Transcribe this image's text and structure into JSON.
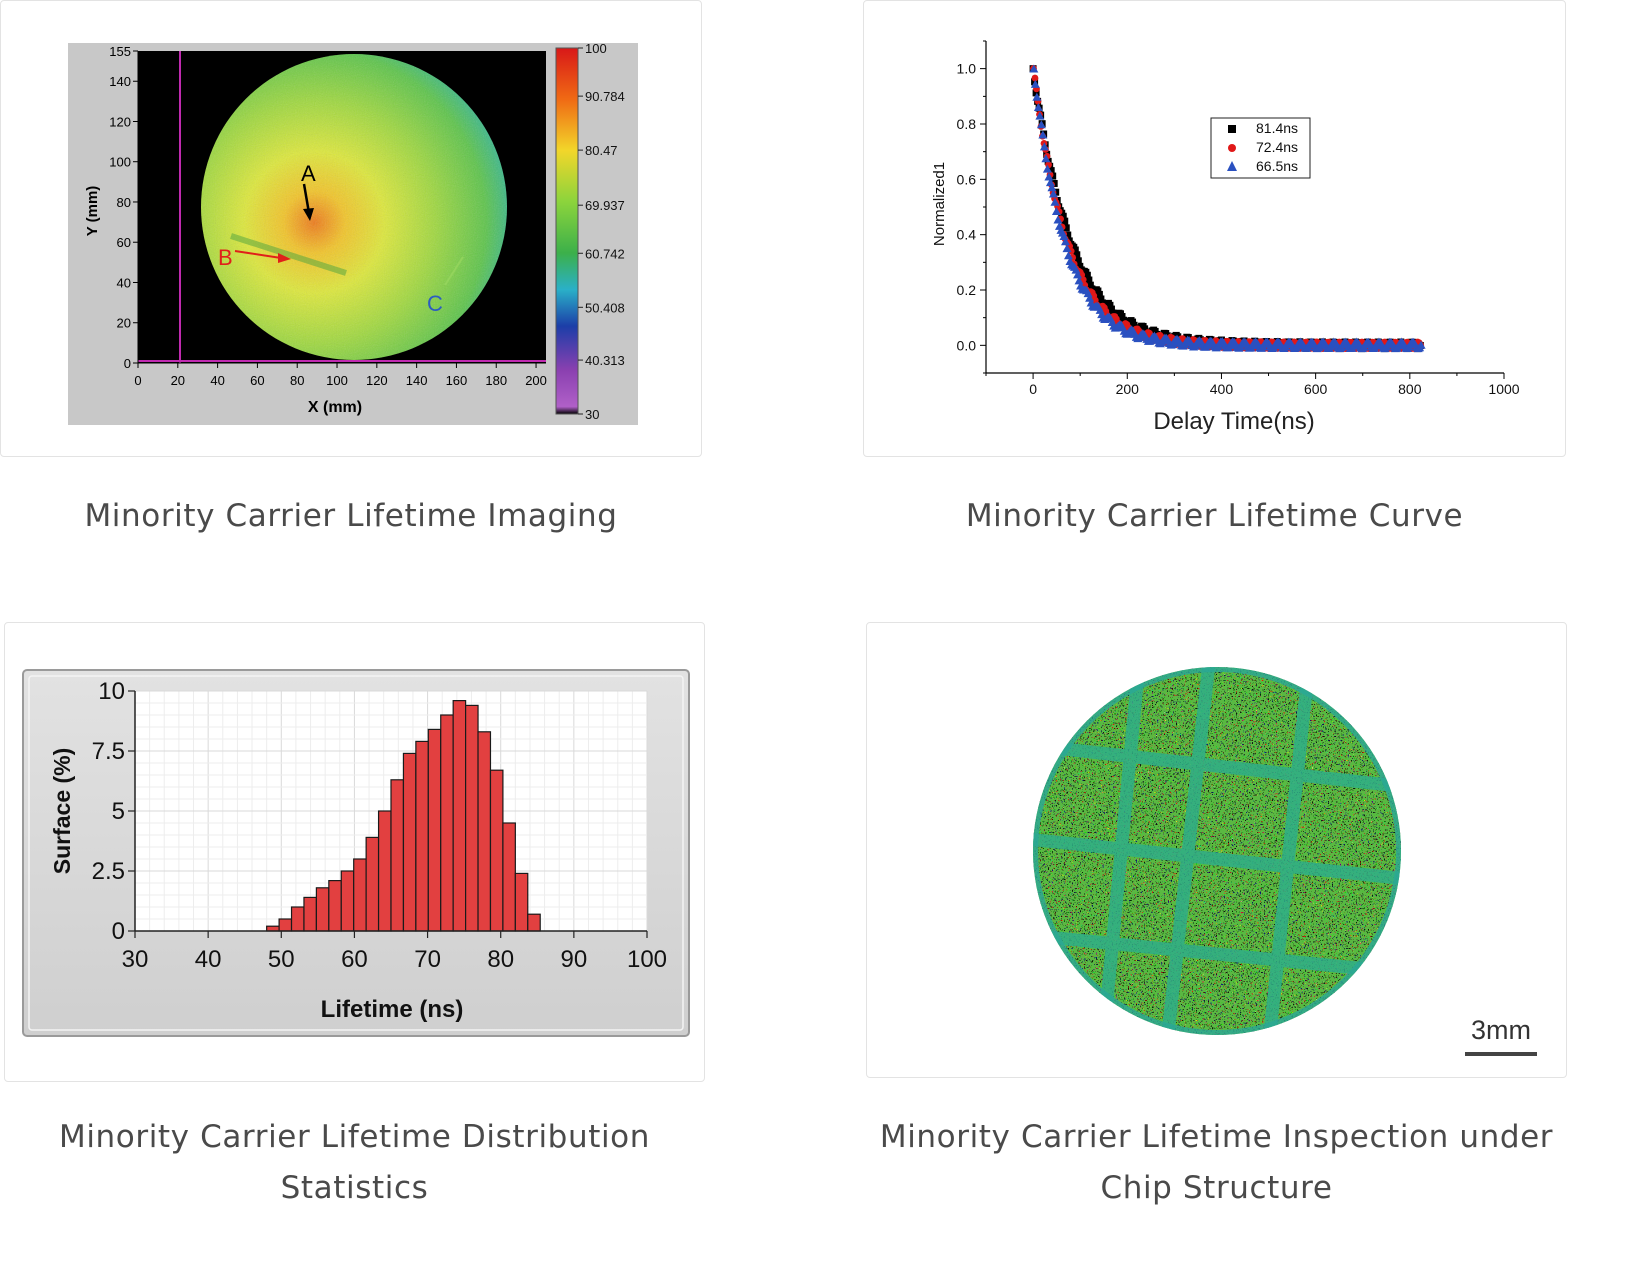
{
  "captions": {
    "imaging": "Minority Carrier Lifetime Imaging",
    "curve": "Minority Carrier Lifetime Curve",
    "distribution_line1": "Minority Carrier Lifetime Distribution",
    "distribution_line2": "Statistics",
    "chip_line1": "Minority Carrier Lifetime Inspection under",
    "chip_line2": "Chip Structure"
  },
  "scale_bar": {
    "label": "3mm"
  },
  "chart_data": [
    {
      "type": "heatmap",
      "xlabel": "X (mm)",
      "ylabel": "Y (mm)",
      "xlim": [
        0,
        205
      ],
      "ylim": [
        0,
        155
      ],
      "x_ticks": [
        0,
        20,
        40,
        60,
        80,
        100,
        120,
        140,
        160,
        180,
        200
      ],
      "y_ticks": [
        0,
        20,
        40,
        60,
        80,
        100,
        120,
        140,
        155
      ],
      "colorbar": {
        "min": 30,
        "max": 100,
        "ticks": [
          "100",
          "90.784",
          "80.47",
          "69.937",
          "60.742",
          "50.408",
          "40.313",
          "30"
        ]
      },
      "annotations": [
        {
          "label": "A",
          "color": "#000000"
        },
        {
          "label": "B",
          "color": "#e0201a"
        },
        {
          "label": "C",
          "color": "#2c5cc0"
        }
      ],
      "colors": {
        "background": "#000000",
        "low": "#1c3ea8",
        "mid": "#62c44a",
        "high": "#f2ee30",
        "peak": "#e85a10",
        "marker_line": "#c02ab0"
      }
    },
    {
      "type": "scatter",
      "xlabel": "Delay Time(ns)",
      "ylabel": "Normalized1",
      "xlim": [
        -100,
        1000
      ],
      "ylim": [
        -0.1,
        1.1
      ],
      "x_ticks": [
        0,
        200,
        400,
        600,
        800,
        1000
      ],
      "y_ticks": [
        "0.0",
        "0.2",
        "0.4",
        "0.6",
        "0.8",
        "1.0"
      ],
      "series": [
        {
          "name": "81.4ns",
          "tau": 81.4,
          "marker": "square",
          "color": "#000000"
        },
        {
          "name": "72.4ns",
          "tau": 72.4,
          "marker": "circle",
          "color": "#e01818"
        },
        {
          "name": "66.5ns",
          "tau": 66.5,
          "marker": "triangle",
          "color": "#2a50c0"
        }
      ],
      "x_range": [
        0,
        825
      ]
    },
    {
      "type": "bar",
      "xlabel": "Lifetime (ns)",
      "ylabel": "Surface (%)",
      "xlim": [
        30,
        100
      ],
      "ylim": [
        0,
        10
      ],
      "x_ticks": [
        "30",
        "40",
        "50",
        "60",
        "70",
        "80",
        "90",
        "100"
      ],
      "y_ticks": [
        "0",
        "2.5",
        "5",
        "7.5",
        "10"
      ],
      "bin_width": 1.7,
      "bin_start": [
        48,
        49.7,
        51.4,
        53.1,
        54.8,
        56.5,
        58.2,
        59.9,
        61.6,
        63.3,
        65,
        66.7,
        68.4,
        70.1,
        71.8,
        73.5,
        75.2,
        76.9,
        78.6,
        80.3,
        82,
        83.7
      ],
      "values": [
        0.2,
        0.5,
        1.0,
        1.4,
        1.8,
        2.1,
        2.5,
        3.0,
        3.9,
        5.0,
        6.3,
        7.4,
        7.9,
        8.4,
        9.0,
        9.6,
        9.4,
        8.3,
        6.7,
        4.5,
        2.4,
        0.7
      ],
      "colors": {
        "bar": "#e24040",
        "frame": "#c9c9c9",
        "plot_bg": "#ffffff"
      }
    },
    {
      "type": "heatmap",
      "colors": {
        "base": "#52b842",
        "grid_line": "#2fae88",
        "speckle_high": "#d7d83c",
        "speckle_low": "#1f8ea8"
      }
    }
  ]
}
